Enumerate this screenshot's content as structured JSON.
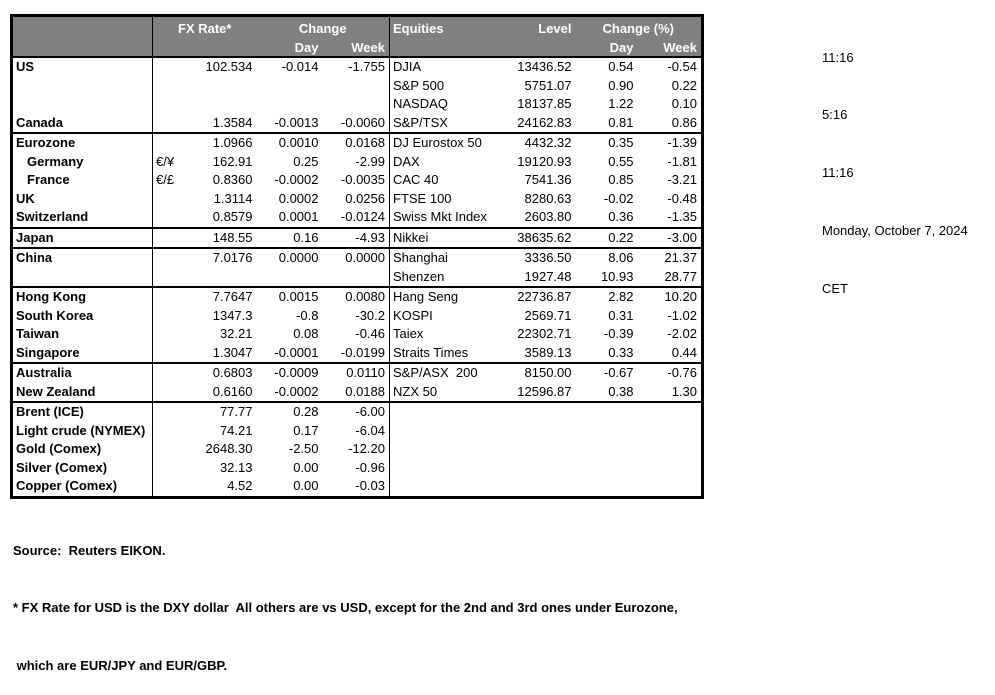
{
  "clock": {
    "lines": [
      "11:16",
      "5:16",
      "11:16",
      "Monday, October 7, 2024",
      "CET"
    ]
  },
  "header": {
    "fx_rate": "FX Rate*",
    "change": "Change",
    "day": "Day",
    "week": "Week",
    "equities": "Equities",
    "level": "Level",
    "change_pct": "Change (%)"
  },
  "table": {
    "rows": [
      {
        "sep": false,
        "indent": false,
        "name": "US",
        "pair": "",
        "fx": "102.534",
        "day": "-0.014",
        "week": "-1.755",
        "eq": "DJIA",
        "level": "13436.52",
        "eday": "0.54",
        "eweek": "-0.54"
      },
      {
        "sep": false,
        "indent": false,
        "name": "",
        "pair": "",
        "fx": "",
        "day": "",
        "week": "",
        "eq": "S&P 500",
        "level": "5751.07",
        "eday": "0.90",
        "eweek": "0.22"
      },
      {
        "sep": false,
        "indent": false,
        "name": "",
        "pair": "",
        "fx": "",
        "day": "",
        "week": "",
        "eq": "NASDAQ",
        "level": "18137.85",
        "eday": "1.22",
        "eweek": "0.10"
      },
      {
        "sep": false,
        "indent": false,
        "name": "Canada",
        "pair": "",
        "fx": "1.3584",
        "day": "-0.0013",
        "week": "-0.0060",
        "eq": "S&P/TSX",
        "level": "24162.83",
        "eday": "0.81",
        "eweek": "0.86"
      },
      {
        "sep": true,
        "indent": false,
        "name": "Eurozone",
        "pair": "",
        "fx": "1.0966",
        "day": "0.0010",
        "week": "0.0168",
        "eq": "DJ Eurostox 50",
        "level": "4432.32",
        "eday": "0.35",
        "eweek": "-1.39"
      },
      {
        "sep": false,
        "indent": true,
        "name": "Germany",
        "pair": "€/¥",
        "fx": "162.91",
        "day": "0.25",
        "week": "-2.99",
        "eq": "DAX",
        "level": "19120.93",
        "eday": "0.55",
        "eweek": "-1.81"
      },
      {
        "sep": false,
        "indent": true,
        "name": "France",
        "pair": "€/£",
        "fx": "0.8360",
        "day": "-0.0002",
        "week": "-0.0035",
        "eq": "CAC 40",
        "level": "7541.36",
        "eday": "0.85",
        "eweek": "-3.21"
      },
      {
        "sep": false,
        "indent": false,
        "name": "UK",
        "pair": "",
        "fx": "1.3114",
        "day": "0.0002",
        "week": "0.0256",
        "eq": "FTSE 100",
        "level": "8280.63",
        "eday": "-0.02",
        "eweek": "-0.48"
      },
      {
        "sep": false,
        "indent": false,
        "name": "Switzerland",
        "pair": "",
        "fx": "0.8579",
        "day": "0.0001",
        "week": "-0.0124",
        "eq": "Swiss Mkt Index",
        "level": "2603.80",
        "eday": "0.36",
        "eweek": "-1.35"
      },
      {
        "sep": true,
        "indent": false,
        "name": "Japan",
        "pair": "",
        "fx": "148.55",
        "day": "0.16",
        "week": "-4.93",
        "eq": "Nikkei",
        "level": "38635.62",
        "eday": "0.22",
        "eweek": "-3.00"
      },
      {
        "sep": true,
        "indent": false,
        "name": "China",
        "pair": "",
        "fx": "7.0176",
        "day": "0.0000",
        "week": "0.0000",
        "eq": "Shanghai",
        "level": "3336.50",
        "eday": "8.06",
        "eweek": "21.37"
      },
      {
        "sep": false,
        "indent": false,
        "name": "",
        "pair": "",
        "fx": "",
        "day": "",
        "week": "",
        "eq": "Shenzen",
        "level": "1927.48",
        "eday": "10.93",
        "eweek": "28.77"
      },
      {
        "sep": true,
        "indent": false,
        "name": "Hong Kong",
        "pair": "",
        "fx": "7.7647",
        "day": "0.0015",
        "week": "0.0080",
        "eq": "Hang Seng",
        "level": "22736.87",
        "eday": "2.82",
        "eweek": "10.20"
      },
      {
        "sep": false,
        "indent": false,
        "name": "South Korea",
        "pair": "",
        "fx": "1347.3",
        "day": "-0.8",
        "week": "-30.2",
        "eq": "KOSPI",
        "level": "2569.71",
        "eday": "0.31",
        "eweek": "-1.02"
      },
      {
        "sep": false,
        "indent": false,
        "name": "Taiwan",
        "pair": "",
        "fx": "32.21",
        "day": "0.08",
        "week": "-0.46",
        "eq": "Taiex",
        "level": "22302.71",
        "eday": "-0.39",
        "eweek": "-2.02"
      },
      {
        "sep": false,
        "indent": false,
        "name": "Singapore",
        "pair": "",
        "fx": "1.3047",
        "day": "-0.0001",
        "week": "-0.0199",
        "eq": "Straits Times",
        "level": "3589.13",
        "eday": "0.33",
        "eweek": "0.44"
      },
      {
        "sep": true,
        "indent": false,
        "name": "Australia",
        "pair": "",
        "fx": "0.6803",
        "day": "-0.0009",
        "week": "0.0110",
        "eq": "S&P/ASX  200",
        "level": "8150.00",
        "eday": "-0.67",
        "eweek": "-0.76"
      },
      {
        "sep": false,
        "indent": false,
        "name": "New Zealand",
        "pair": "",
        "fx": "0.6160",
        "day": "-0.0002",
        "week": "0.0188",
        "eq": "NZX 50",
        "level": "12596.87",
        "eday": "0.38",
        "eweek": "1.30"
      },
      {
        "sep": true,
        "indent": false,
        "name": "Brent (ICE)",
        "pair": "",
        "fx": "77.77",
        "day": "0.28",
        "week": "-6.00",
        "eq": "",
        "level": "",
        "eday": "",
        "eweek": ""
      },
      {
        "sep": false,
        "indent": false,
        "name": "Light crude (NYMEX)",
        "pair": "",
        "fx": "74.21",
        "day": "0.17",
        "week": "-6.04",
        "eq": "",
        "level": "",
        "eday": "",
        "eweek": ""
      },
      {
        "sep": false,
        "indent": false,
        "name": "Gold (Comex)",
        "pair": "",
        "fx": "2648.30",
        "day": "-2.50",
        "week": "-12.20",
        "eq": "",
        "level": "",
        "eday": "",
        "eweek": ""
      },
      {
        "sep": false,
        "indent": false,
        "name": "Silver (Comex)",
        "pair": "",
        "fx": "32.13",
        "day": "0.00",
        "week": "-0.96",
        "eq": "",
        "level": "",
        "eday": "",
        "eweek": ""
      },
      {
        "sep": false,
        "indent": false,
        "name": "Copper (Comex)",
        "pair": "",
        "fx": "4.52",
        "day": "0.00",
        "week": "-0.03",
        "eq": "",
        "level": "",
        "eday": "",
        "eweek": ""
      }
    ]
  },
  "footer": {
    "lines": [
      "Source:  Reuters EIKON.",
      "* FX Rate for USD is the DXY dollar  All others are vs USD, except for the 2nd and 3rd ones under Eurozone,",
      " which are EUR/JPY and EUR/GBP."
    ]
  },
  "colors": {
    "header_bg": "#808080",
    "header_text": "#ffffff",
    "border": "#000000",
    "page_bg": "#ffffff"
  }
}
